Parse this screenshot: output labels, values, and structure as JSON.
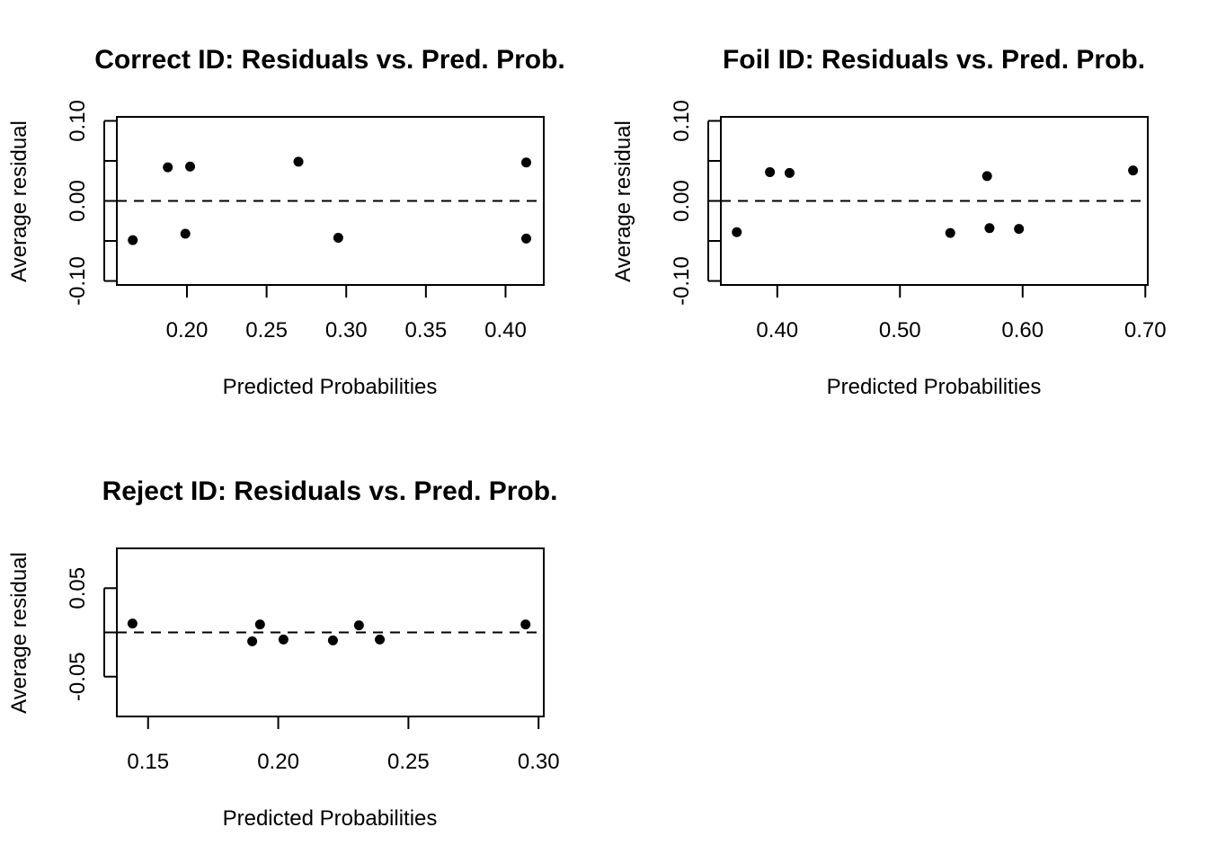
{
  "chart_data": [
    {
      "type": "scatter",
      "title": "Correct ID: Residuals vs. Pred. Prob.",
      "xlabel": "Predicted Probabilities",
      "ylabel": "Average residual",
      "xlim": [
        0.156,
        0.424
      ],
      "ylim": [
        -0.105,
        0.105
      ],
      "xticks": [
        "0.20",
        "0.25",
        "0.30",
        "0.35",
        "0.40"
      ],
      "yticks": [
        "-0.10",
        "0.00",
        "0.10"
      ],
      "reference_line": 0,
      "points": [
        {
          "x": 0.166,
          "y": -0.049
        },
        {
          "x": 0.188,
          "y": 0.042
        },
        {
          "x": 0.199,
          "y": -0.041
        },
        {
          "x": 0.202,
          "y": 0.043
        },
        {
          "x": 0.27,
          "y": 0.049
        },
        {
          "x": 0.295,
          "y": -0.046
        },
        {
          "x": 0.413,
          "y": 0.048
        },
        {
          "x": 0.413,
          "y": -0.047
        }
      ]
    },
    {
      "type": "scatter",
      "title": "Foil ID: Residuals vs. Pred. Prob.",
      "xlabel": "Predicted Probabilities",
      "ylabel": "Average residual",
      "xlim": [
        0.354,
        0.702
      ],
      "ylim": [
        -0.105,
        0.105
      ],
      "xticks": [
        "0.40",
        "0.50",
        "0.60",
        "0.70"
      ],
      "yticks": [
        "-0.10",
        "0.00",
        "0.10"
      ],
      "reference_line": 0,
      "points": [
        {
          "x": 0.367,
          "y": -0.039
        },
        {
          "x": 0.394,
          "y": 0.036
        },
        {
          "x": 0.41,
          "y": 0.035
        },
        {
          "x": 0.541,
          "y": -0.04
        },
        {
          "x": 0.571,
          "y": 0.031
        },
        {
          "x": 0.573,
          "y": -0.034
        },
        {
          "x": 0.597,
          "y": -0.035
        },
        {
          "x": 0.69,
          "y": 0.038
        }
      ]
    },
    {
      "type": "scatter",
      "title": "Reject ID: Residuals vs. Pred. Prob.",
      "xlabel": "Predicted Probabilities",
      "ylabel": "Average residual",
      "xlim": [
        0.138,
        0.302
      ],
      "ylim": [
        -0.095,
        0.095
      ],
      "xticks": [
        "0.15",
        "0.20",
        "0.25",
        "0.30"
      ],
      "yticks": [
        "-0.05",
        "0.05"
      ],
      "reference_line": 0,
      "points": [
        {
          "x": 0.144,
          "y": 0.01
        },
        {
          "x": 0.19,
          "y": -0.01
        },
        {
          "x": 0.193,
          "y": 0.009
        },
        {
          "x": 0.202,
          "y": -0.008
        },
        {
          "x": 0.221,
          "y": -0.009
        },
        {
          "x": 0.231,
          "y": 0.008
        },
        {
          "x": 0.239,
          "y": -0.008
        },
        {
          "x": 0.295,
          "y": 0.009
        }
      ]
    }
  ]
}
